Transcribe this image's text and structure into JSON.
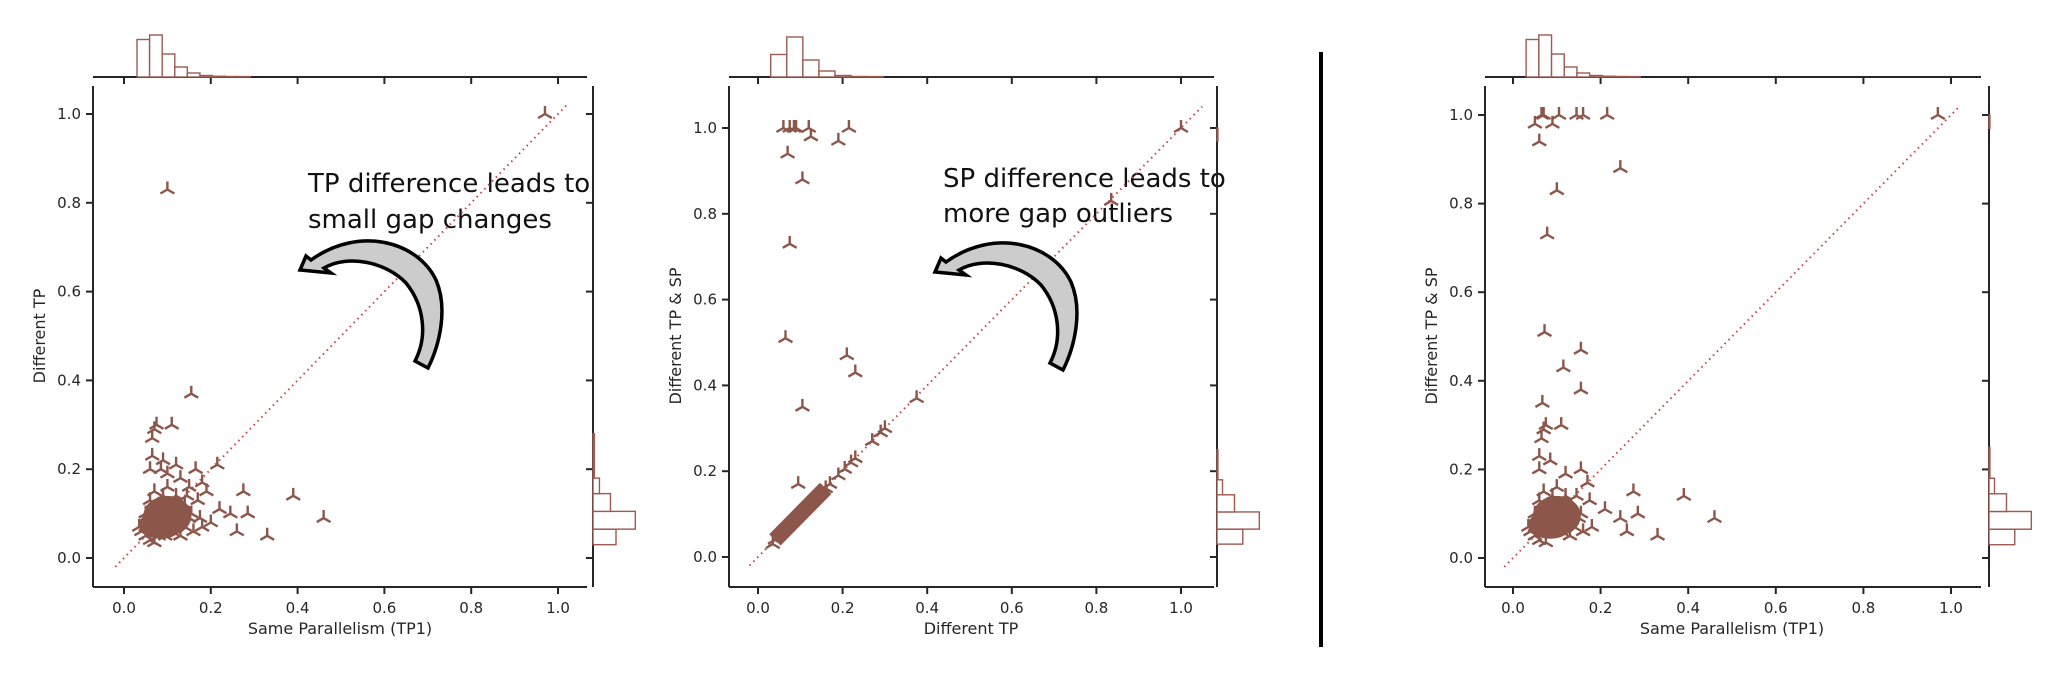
{
  "colors": {
    "marker": "#8c564b",
    "diagonal": "#c0464b",
    "histogram_edge": "#9c5a52",
    "arrow_fill": "#cccccc",
    "divider": "#000000"
  },
  "chart_data": [
    {
      "type": "scatter",
      "marker": "tri_up",
      "title": "",
      "xlabel": "Same Parallelism (TP1)",
      "ylabel": "Different TP",
      "xlim": [
        -0.06,
        1.06
      ],
      "ylim": [
        -0.06,
        1.06
      ],
      "xticks": [
        "0.0",
        "0.2",
        "0.4",
        "0.6",
        "0.8",
        "1.0"
      ],
      "yticks": [
        "0.0",
        "0.2",
        "0.4",
        "0.6",
        "0.8",
        "1.0"
      ],
      "diagonal": "y = x (dotted reference)",
      "annotation": {
        "lines": [
          "TP difference leads to",
          "small gap changes"
        ]
      },
      "points": [
        [
          0.97,
          1.0
        ],
        [
          0.1,
          0.83
        ],
        [
          0.155,
          0.37
        ],
        [
          0.11,
          0.3
        ],
        [
          0.075,
          0.3
        ],
        [
          0.07,
          0.29
        ],
        [
          0.065,
          0.27
        ],
        [
          0.065,
          0.23
        ],
        [
          0.09,
          0.22
        ],
        [
          0.12,
          0.21
        ],
        [
          0.165,
          0.2
        ],
        [
          0.215,
          0.21
        ],
        [
          0.085,
          0.2
        ],
        [
          0.06,
          0.2
        ],
        [
          0.1,
          0.19
        ],
        [
          0.13,
          0.18
        ],
        [
          0.18,
          0.17
        ],
        [
          0.19,
          0.15
        ],
        [
          0.275,
          0.15
        ],
        [
          0.39,
          0.14
        ],
        [
          0.46,
          0.09
        ],
        [
          0.33,
          0.05
        ],
        [
          0.26,
          0.06
        ],
        [
          0.285,
          0.1
        ],
        [
          0.245,
          0.1
        ],
        [
          0.22,
          0.11
        ],
        [
          0.2,
          0.08
        ],
        [
          0.18,
          0.07
        ],
        [
          0.035,
          0.07
        ],
        [
          0.05,
          0.05
        ],
        [
          0.06,
          0.04
        ],
        [
          0.07,
          0.035
        ],
        [
          0.08,
          0.05
        ],
        [
          0.15,
          0.16
        ],
        [
          0.17,
          0.13
        ],
        [
          0.14,
          0.12
        ],
        [
          0.05,
          0.1
        ],
        [
          0.06,
          0.13
        ],
        [
          0.07,
          0.15
        ],
        [
          0.08,
          0.12
        ],
        [
          0.09,
          0.1
        ],
        [
          0.1,
          0.08
        ],
        [
          0.11,
          0.06
        ],
        [
          0.12,
          0.09
        ],
        [
          0.13,
          0.11
        ],
        [
          0.14,
          0.07
        ],
        [
          0.15,
          0.09
        ],
        [
          0.16,
          0.06
        ],
        [
          0.12,
          0.14
        ],
        [
          0.1,
          0.16
        ],
        [
          0.09,
          0.14
        ],
        [
          0.08,
          0.09
        ],
        [
          0.07,
          0.07
        ],
        [
          0.06,
          0.09
        ],
        [
          0.05,
          0.07
        ],
        [
          0.04,
          0.06
        ],
        [
          0.09,
          0.06
        ],
        [
          0.11,
          0.11
        ],
        [
          0.13,
          0.05
        ],
        [
          0.07,
          0.11
        ],
        [
          0.1,
          0.12
        ],
        [
          0.12,
          0.07
        ],
        [
          0.155,
          0.1
        ],
        [
          0.175,
          0.09
        ],
        [
          0.065,
          0.06
        ],
        [
          0.085,
          0.07
        ],
        [
          0.105,
          0.09
        ],
        [
          0.125,
          0.1
        ],
        [
          0.145,
          0.14
        ],
        [
          0.095,
          0.05
        ]
      ],
      "top_histogram": {
        "bin_start": 0.03,
        "bin_width": 0.029,
        "counts": [
          0.75,
          0.84,
          0.46,
          0.2,
          0.08,
          0.03,
          0.015,
          0.01,
          0.008,
          0.005,
          0.003,
          0.002
        ]
      },
      "right_histogram": {
        "bins": [
          [
            0.03,
            0.065
          ],
          [
            0.065,
            0.105
          ],
          [
            0.105,
            0.145
          ],
          [
            0.145,
            0.18
          ],
          [
            0.18,
            0.28
          ]
        ],
        "counts": [
          0.5,
          0.92,
          0.38,
          0.14,
          0.03
        ]
      }
    },
    {
      "type": "scatter",
      "marker": "tri_up",
      "title": "",
      "xlabel": "Different TP",
      "ylabel": "Different TP & SP",
      "xlim": [
        -0.06,
        1.12
      ],
      "ylim": [
        -0.06,
        1.12
      ],
      "xticks": [
        "0.0",
        "0.2",
        "0.4",
        "0.6",
        "0.8",
        "1.0"
      ],
      "yticks": [
        "0.0",
        "0.2",
        "0.4",
        "0.6",
        "0.8",
        "1.0"
      ],
      "diagonal": "y = x (dotted reference)",
      "annotation": {
        "lines": [
          "SP difference leads to",
          "more gap outliers"
        ]
      },
      "points": [
        [
          0.06,
          1.0
        ],
        [
          0.075,
          1.0
        ],
        [
          0.085,
          1.0
        ],
        [
          0.09,
          1.0
        ],
        [
          0.12,
          1.0
        ],
        [
          0.215,
          1.0
        ],
        [
          0.125,
          0.98
        ],
        [
          0.19,
          0.97
        ],
        [
          0.07,
          0.94
        ],
        [
          0.105,
          0.88
        ],
        [
          0.075,
          0.73
        ],
        [
          0.065,
          0.51
        ],
        [
          0.21,
          0.47
        ],
        [
          0.23,
          0.43
        ],
        [
          0.105,
          0.35
        ],
        [
          0.095,
          0.17
        ],
        [
          1.0,
          1.0
        ],
        [
          0.835,
          0.83
        ],
        [
          0.375,
          0.37
        ],
        [
          0.3,
          0.3
        ],
        [
          0.29,
          0.29
        ],
        [
          0.27,
          0.27
        ],
        [
          0.23,
          0.23
        ],
        [
          0.22,
          0.22
        ],
        [
          0.205,
          0.205
        ],
        [
          0.19,
          0.19
        ],
        [
          0.17,
          0.17
        ],
        [
          0.16,
          0.16
        ],
        [
          0.15,
          0.15
        ],
        [
          0.14,
          0.14
        ],
        [
          0.13,
          0.13
        ],
        [
          0.12,
          0.12
        ],
        [
          0.11,
          0.11
        ],
        [
          0.1,
          0.1
        ],
        [
          0.09,
          0.09
        ],
        [
          0.08,
          0.08
        ],
        [
          0.07,
          0.07
        ],
        [
          0.06,
          0.06
        ],
        [
          0.05,
          0.05
        ],
        [
          0.04,
          0.04
        ],
        [
          0.035,
          0.03
        ]
      ],
      "top_histogram": {
        "bin_start": 0.03,
        "bin_width": 0.038,
        "counts": [
          0.45,
          0.8,
          0.34,
          0.12,
          0.03,
          0.01,
          0.008,
          0.004,
          0.003
        ]
      },
      "right_histogram": {
        "bins": [
          [
            0.03,
            0.065
          ],
          [
            0.065,
            0.105
          ],
          [
            0.105,
            0.145
          ],
          [
            0.145,
            0.18
          ],
          [
            0.18,
            0.25
          ],
          [
            0.97,
            1.0
          ]
        ],
        "counts": [
          0.56,
          0.92,
          0.38,
          0.12,
          0.02,
          0.02
        ]
      }
    },
    {
      "type": "scatter",
      "marker": "tri_up",
      "title": "",
      "xlabel": "Same Parallelism (TP1)",
      "ylabel": "Different TP & SP",
      "xlim": [
        -0.06,
        1.06
      ],
      "ylim": [
        -0.06,
        1.06
      ],
      "xticks": [
        "0.0",
        "0.2",
        "0.4",
        "0.6",
        "0.8",
        "1.0"
      ],
      "yticks": [
        "0.0",
        "0.2",
        "0.4",
        "0.6",
        "0.8",
        "1.0"
      ],
      "diagonal": "y = x (dotted reference)",
      "points": [
        [
          0.97,
          1.0
        ],
        [
          0.065,
          1.0
        ],
        [
          0.07,
          1.0
        ],
        [
          0.105,
          1.0
        ],
        [
          0.145,
          1.0
        ],
        [
          0.16,
          1.0
        ],
        [
          0.215,
          1.0
        ],
        [
          0.05,
          0.98
        ],
        [
          0.09,
          0.98
        ],
        [
          0.06,
          0.94
        ],
        [
          0.245,
          0.88
        ],
        [
          0.1,
          0.83
        ],
        [
          0.078,
          0.73
        ],
        [
          0.072,
          0.51
        ],
        [
          0.155,
          0.47
        ],
        [
          0.115,
          0.43
        ],
        [
          0.155,
          0.38
        ],
        [
          0.067,
          0.35
        ],
        [
          0.075,
          0.3
        ],
        [
          0.11,
          0.3
        ],
        [
          0.07,
          0.29
        ],
        [
          0.065,
          0.27
        ],
        [
          0.06,
          0.23
        ],
        [
          0.085,
          0.22
        ],
        [
          0.155,
          0.2
        ],
        [
          0.12,
          0.19
        ],
        [
          0.06,
          0.2
        ],
        [
          0.17,
          0.17
        ],
        [
          0.275,
          0.15
        ],
        [
          0.39,
          0.14
        ],
        [
          0.46,
          0.09
        ],
        [
          0.33,
          0.05
        ],
        [
          0.26,
          0.06
        ],
        [
          0.285,
          0.1
        ],
        [
          0.245,
          0.09
        ],
        [
          0.21,
          0.11
        ],
        [
          0.18,
          0.07
        ],
        [
          0.035,
          0.07
        ],
        [
          0.05,
          0.05
        ],
        [
          0.06,
          0.04
        ],
        [
          0.075,
          0.035
        ],
        [
          0.05,
          0.1
        ],
        [
          0.06,
          0.13
        ],
        [
          0.07,
          0.15
        ],
        [
          0.08,
          0.12
        ],
        [
          0.09,
          0.1
        ],
        [
          0.1,
          0.08
        ],
        [
          0.11,
          0.06
        ],
        [
          0.12,
          0.09
        ],
        [
          0.13,
          0.11
        ],
        [
          0.14,
          0.07
        ],
        [
          0.15,
          0.09
        ],
        [
          0.16,
          0.06
        ],
        [
          0.12,
          0.14
        ],
        [
          0.1,
          0.16
        ],
        [
          0.09,
          0.14
        ],
        [
          0.08,
          0.09
        ],
        [
          0.07,
          0.07
        ],
        [
          0.06,
          0.09
        ],
        [
          0.05,
          0.07
        ],
        [
          0.04,
          0.06
        ],
        [
          0.09,
          0.06
        ],
        [
          0.11,
          0.11
        ],
        [
          0.13,
          0.05
        ],
        [
          0.07,
          0.11
        ],
        [
          0.1,
          0.12
        ],
        [
          0.12,
          0.07
        ],
        [
          0.155,
          0.1
        ],
        [
          0.175,
          0.13
        ],
        [
          0.145,
          0.14
        ]
      ],
      "top_histogram": {
        "bin_start": 0.03,
        "bin_width": 0.029,
        "counts": [
          0.75,
          0.84,
          0.46,
          0.2,
          0.08,
          0.03,
          0.015,
          0.01,
          0.008,
          0.005,
          0.003,
          0.002
        ]
      },
      "right_histogram": {
        "bins": [
          [
            0.03,
            0.065
          ],
          [
            0.065,
            0.105
          ],
          [
            0.105,
            0.145
          ],
          [
            0.145,
            0.18
          ],
          [
            0.18,
            0.25
          ],
          [
            0.97,
            1.0
          ]
        ],
        "counts": [
          0.56,
          0.92,
          0.38,
          0.12,
          0.02,
          0.02
        ]
      }
    }
  ]
}
